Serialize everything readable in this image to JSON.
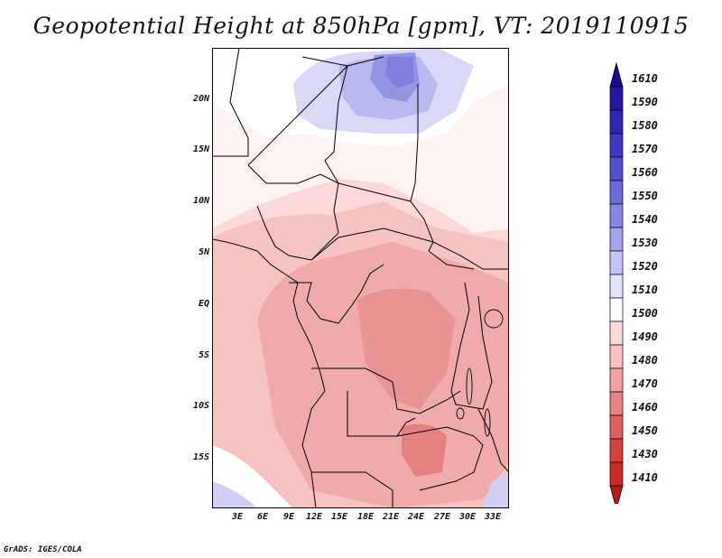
{
  "title": "Geopotential Height at 850hPa [gpm], VT: 2019110915",
  "credit": "GrADS: IGES/COLA",
  "map": {
    "variable": "Geopotential Height",
    "level": "850hPa",
    "units": "gpm",
    "valid_time": "2019110915",
    "lat_labels": [
      "20N",
      "15N",
      "10N",
      "5N",
      "EQ",
      "5S",
      "10S",
      "15S"
    ],
    "lon_labels": [
      "3E",
      "6E",
      "9E",
      "12E",
      "15E",
      "18E",
      "21E",
      "24E",
      "27E",
      "30E",
      "33E"
    ]
  },
  "colorbar": {
    "levels": [
      "1610",
      "1590",
      "1580",
      "1570",
      "1560",
      "1550",
      "1540",
      "1530",
      "1520",
      "1510",
      "1500",
      "1490",
      "1480",
      "1470",
      "1460",
      "1450",
      "1430",
      "1410"
    ],
    "colors": [
      "#1a0c8c",
      "#2418a0",
      "#3024b4",
      "#3f38c4",
      "#5250d0",
      "#6a6ad8",
      "#8686e4",
      "#a4a4ee",
      "#c4c4f6",
      "#e4e4fc",
      "#ffffff",
      "#fddada",
      "#f8c0c0",
      "#f0a2a2",
      "#e88282",
      "#e06060",
      "#d84040",
      "#cc2828",
      "#b81818"
    ]
  },
  "colors": {
    "land_border": "#000000",
    "frame": "#000000"
  }
}
